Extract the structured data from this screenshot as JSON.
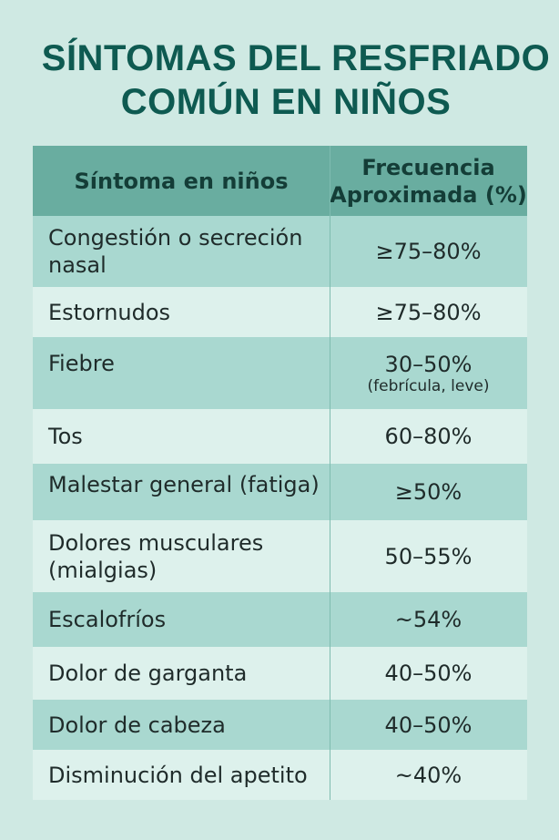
{
  "title": {
    "line1": "SÍNTOMAS DEL RESFRIADO",
    "line2": "COMÚN EN NIÑOS"
  },
  "table": {
    "headers": {
      "symptom": "Síntoma en niños",
      "frequency_line1": "Frecuencia",
      "frequency_line2": "Aproximada (%)"
    },
    "rows": [
      {
        "symptom_line1": "Congestión o secreción",
        "symptom_line2": "nasal",
        "frequency": "≥75–80%",
        "note": ""
      },
      {
        "symptom_line1": "Estornudos",
        "symptom_line2": "",
        "frequency": "≥75–80%",
        "note": ""
      },
      {
        "symptom_line1": "Fiebre",
        "symptom_line2": "",
        "frequency": "30–50%",
        "note": "(febrícula, leve)"
      },
      {
        "symptom_line1": "Tos",
        "symptom_line2": "",
        "frequency": "60–80%",
        "note": ""
      },
      {
        "symptom_line1": "Malestar general (fatiga)",
        "symptom_line2": "",
        "frequency": "≥50%",
        "note": ""
      },
      {
        "symptom_line1": "Dolores musculares",
        "symptom_line2": "(mialgias)",
        "frequency": "50–55%",
        "note": ""
      },
      {
        "symptom_line1": "Escalofríos",
        "symptom_line2": "",
        "frequency": "~54%",
        "note": ""
      },
      {
        "symptom_line1": "Dolor de garganta",
        "symptom_line2": "",
        "frequency": "40–50%",
        "note": ""
      },
      {
        "symptom_line1": "Dolor de cabeza",
        "symptom_line2": "",
        "frequency": "40–50%",
        "note": ""
      },
      {
        "symptom_line1": "Disminución del apetito",
        "symptom_line2": "",
        "frequency": "~40%",
        "note": ""
      }
    ]
  },
  "colors": {
    "background": "#cfe9e3",
    "title": "#0e5a51",
    "header": "#69ada0",
    "row_dark": "#a9d8d0",
    "row_light": "#ddf1ec"
  }
}
